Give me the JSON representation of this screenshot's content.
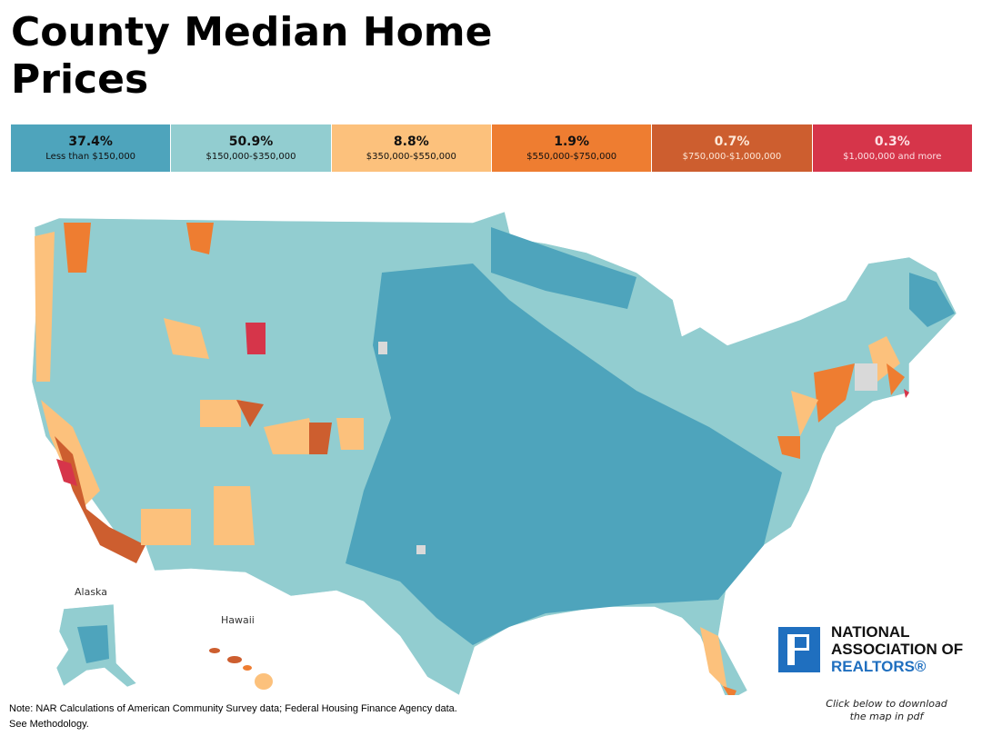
{
  "title": "County Median Home Prices",
  "legend": [
    {
      "pct": "37.4%",
      "range": "Less than $150,000",
      "color": "#4ea4bc",
      "text": "#111"
    },
    {
      "pct": "50.9%",
      "range": "$150,000-$350,000",
      "color": "#92cdd0",
      "text": "#111"
    },
    {
      "pct": "8.8%",
      "range": "$350,000-$550,000",
      "color": "#fcc17c",
      "text": "#111"
    },
    {
      "pct": "1.9%",
      "range": "$550,000-$750,000",
      "color": "#ee7d31",
      "text": "#111"
    },
    {
      "pct": "0.7%",
      "range": "$750,000-$1,000,000",
      "color": "#cd5e2f",
      "text": "#fde8d8"
    },
    {
      "pct": "0.3%",
      "range": "$1,000,000 and more",
      "color": "#d6354a",
      "text": "#fde0e4"
    }
  ],
  "map_labels": {
    "alaska": "Alaska",
    "hawaii": "Hawaii"
  },
  "note_line1": "Note: NAR Calculations of American Community Survey data; Federal Housing Finance Agency data.",
  "note_line2": "See Methodology.",
  "logo": {
    "line1": "NATIONAL",
    "line2": "ASSOCIATION OF",
    "line3": "REALTORS®"
  },
  "download_text": "Click below to download the map in pdf"
}
